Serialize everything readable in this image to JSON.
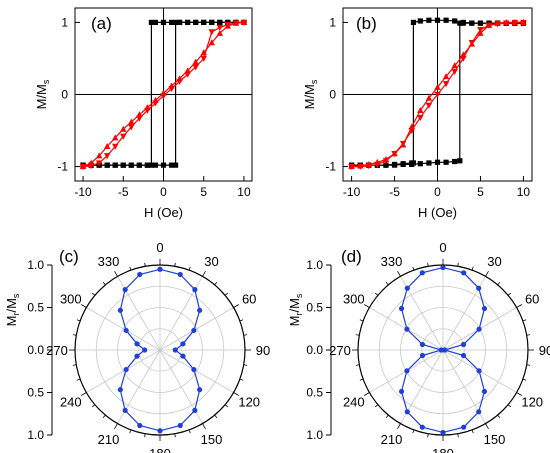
{
  "chart_data": [
    {
      "panel_label": "(a)",
      "type": "line",
      "xlabel": "H (Oe)",
      "ylabel": "M/M",
      "ylabel_sub": "s",
      "xlim": [
        -11,
        11
      ],
      "ylim": [
        -1.2,
        1.2
      ],
      "xticks": [
        "-10",
        "-5",
        "0",
        "5",
        "10"
      ],
      "yticks": [
        "-1",
        "0",
        "1"
      ],
      "grid": false,
      "series": [
        {
          "color": "#000000",
          "marker": "square",
          "x": [
            -10,
            -9,
            -8,
            -7,
            -6,
            -5,
            -4,
            -3,
            -2,
            -1.5,
            -1.5,
            -1,
            0,
            1,
            2,
            3,
            4,
            5,
            6,
            7,
            8,
            9,
            10
          ],
          "y": [
            -0.98,
            -0.98,
            -0.98,
            -0.98,
            -0.98,
            -0.98,
            -0.98,
            -0.98,
            -0.98,
            -0.98,
            1,
            1,
            1,
            1,
            1,
            1,
            1,
            1,
            1,
            1,
            1,
            1,
            1
          ]
        },
        {
          "color": "#000000",
          "marker": "square",
          "x": [
            10,
            9,
            8,
            7,
            6,
            5,
            4,
            3,
            2,
            1.5,
            1.5,
            1,
            0,
            -1,
            -2,
            -3,
            -4,
            -5,
            -6,
            -7,
            -8,
            -9,
            -10
          ],
          "y": [
            1,
            1,
            1,
            1,
            1,
            1,
            1,
            1,
            1,
            1,
            -0.98,
            -0.98,
            -0.98,
            -0.98,
            -0.98,
            -0.98,
            -0.98,
            -0.98,
            -0.98,
            -0.98,
            -0.98,
            -0.98,
            -0.98
          ]
        },
        {
          "color": "#ff0000",
          "marker": "triangle-up",
          "x": [
            -10,
            -9,
            -8,
            -7,
            -6,
            -5,
            -4,
            -3,
            -2,
            -1,
            0,
            1,
            2,
            3,
            4,
            5,
            6,
            7,
            8,
            9,
            10
          ],
          "y": [
            -1,
            -0.95,
            -0.85,
            -0.72,
            -0.6,
            -0.48,
            -0.38,
            -0.28,
            -0.18,
            -0.08,
            0.02,
            0.12,
            0.22,
            0.33,
            0.45,
            0.58,
            0.72,
            0.85,
            0.95,
            0.99,
            1
          ]
        },
        {
          "color": "#ff0000",
          "marker": "triangle-down",
          "x": [
            10,
            9,
            8,
            7,
            6,
            5,
            4,
            3,
            2,
            1,
            0,
            -1,
            -2,
            -3,
            -4,
            -5,
            -6,
            -7,
            -8,
            -9,
            -10
          ],
          "y": [
            1,
            0.99,
            0.97,
            0.93,
            0.87,
            0.5,
            0.38,
            0.28,
            0.18,
            0.08,
            -0.02,
            -0.12,
            -0.22,
            -0.33,
            -0.45,
            -0.58,
            -0.72,
            -0.85,
            -0.95,
            -0.99,
            -1
          ]
        }
      ]
    },
    {
      "panel_label": "(b)",
      "type": "line",
      "xlabel": "H (Oe)",
      "ylabel": "M/M",
      "ylabel_sub": "s",
      "xlim": [
        -11,
        11
      ],
      "ylim": [
        -1.2,
        1.2
      ],
      "xticks": [
        "-10",
        "-5",
        "0",
        "5",
        "10"
      ],
      "yticks": [
        "-1",
        "0",
        "1"
      ],
      "grid": false,
      "series": [
        {
          "color": "#000000",
          "marker": "square",
          "x": [
            -10,
            -9,
            -8,
            -7,
            -6,
            -5,
            -4,
            -3,
            -2.8,
            -2.8,
            -2,
            -1,
            0,
            1,
            2,
            3,
            4,
            5,
            6,
            7,
            8,
            9,
            10
          ],
          "y": [
            -0.98,
            -0.98,
            -0.98,
            -0.98,
            -0.98,
            -0.97,
            -0.96,
            -0.95,
            -0.95,
            1.0,
            1.02,
            1.03,
            1.03,
            1.03,
            1.02,
            1.0,
            0.99,
            0.99,
            0.99,
            0.99,
            0.99,
            0.99,
            0.99
          ]
        },
        {
          "color": "#000000",
          "marker": "square",
          "x": [
            10,
            9,
            8,
            7,
            6,
            5,
            4,
            3,
            2.6,
            2.6,
            2,
            1,
            0,
            -1,
            -2,
            -3,
            -4,
            -5,
            -6,
            -7,
            -8,
            -9,
            -10
          ],
          "y": [
            0.99,
            0.99,
            0.99,
            0.99,
            0.99,
            0.99,
            0.99,
            0.99,
            0.99,
            -0.92,
            -0.93,
            -0.94,
            -0.94,
            -0.95,
            -0.96,
            -0.97,
            -0.97,
            -0.98,
            -0.98,
            -0.98,
            -0.98,
            -0.98,
            -0.98
          ]
        },
        {
          "color": "#ff0000",
          "marker": "triangle-up",
          "x": [
            -10,
            -9,
            -8,
            -7,
            -6,
            -5,
            -4,
            -3,
            -2,
            -1,
            0,
            1,
            2,
            3,
            4,
            5,
            6,
            7,
            8,
            9,
            10
          ],
          "y": [
            -1,
            -0.99,
            -0.97,
            -0.94,
            -0.9,
            -0.82,
            -0.7,
            -0.45,
            -0.22,
            -0.05,
            0.1,
            0.25,
            0.4,
            0.55,
            0.7,
            0.85,
            0.96,
            0.99,
            1,
            1,
            1
          ]
        },
        {
          "color": "#ff0000",
          "marker": "triangle-down",
          "x": [
            10,
            9,
            8,
            7,
            6,
            5,
            4,
            3,
            2,
            1,
            0,
            -1,
            -2,
            -3,
            -4,
            -5,
            -6,
            -7,
            -8,
            -9,
            -10
          ],
          "y": [
            1,
            1,
            0.99,
            0.98,
            0.96,
            0.9,
            0.72,
            0.5,
            0.32,
            0.15,
            0,
            -0.15,
            -0.32,
            -0.5,
            -0.68,
            -0.82,
            -0.92,
            -0.97,
            -0.99,
            -1,
            -1
          ]
        }
      ]
    },
    {
      "panel_label": "(c)",
      "type": "polar",
      "ylabel": "M",
      "ylabel_sub": "r",
      "ylabel_tail": "/M",
      "ylabel_sub2": "s",
      "radial_ticks": [
        "1.0",
        "0.5",
        "0.0",
        "0.5",
        "1.0"
      ],
      "angle_labels": [
        "0",
        "30",
        "60",
        "90",
        "120",
        "150",
        "180",
        "210",
        "240",
        "270",
        "300",
        "330"
      ],
      "color": "#1f3fdc",
      "theta_deg": [
        0,
        15,
        30,
        45,
        60,
        75,
        90,
        105,
        120,
        135,
        150,
        165,
        180,
        195,
        210,
        225,
        240,
        255,
        270,
        285,
        300,
        315,
        330,
        345
      ],
      "r": [
        0.95,
        0.92,
        0.82,
        0.66,
        0.46,
        0.28,
        0.18,
        0.28,
        0.46,
        0.66,
        0.82,
        0.92,
        0.95,
        0.92,
        0.82,
        0.66,
        0.46,
        0.28,
        0.18,
        0.28,
        0.46,
        0.66,
        0.82,
        0.92
      ]
    },
    {
      "panel_label": "(d)",
      "type": "polar",
      "ylabel": "M",
      "ylabel_sub": "r",
      "ylabel_tail": "/M",
      "ylabel_sub2": "s",
      "radial_ticks": [
        "1.0",
        "0.5",
        "0.0",
        "0.5",
        "1.0"
      ],
      "angle_labels": [
        "0",
        "30",
        "60",
        "90",
        "120",
        "150",
        "180",
        "210",
        "240",
        "270",
        "300",
        "330"
      ],
      "color": "#1f3fdc",
      "theta_deg": [
        0,
        15,
        30,
        45,
        60,
        75,
        90,
        105,
        120,
        135,
        150,
        165,
        180,
        195,
        210,
        225,
        240,
        255,
        270,
        285,
        300,
        315,
        330,
        345
      ],
      "r": [
        0.97,
        0.94,
        0.84,
        0.69,
        0.49,
        0.25,
        0.02,
        0.25,
        0.49,
        0.69,
        0.84,
        0.94,
        0.97,
        0.94,
        0.84,
        0.69,
        0.49,
        0.25,
        0.02,
        0.25,
        0.49,
        0.69,
        0.84,
        0.94
      ]
    }
  ]
}
